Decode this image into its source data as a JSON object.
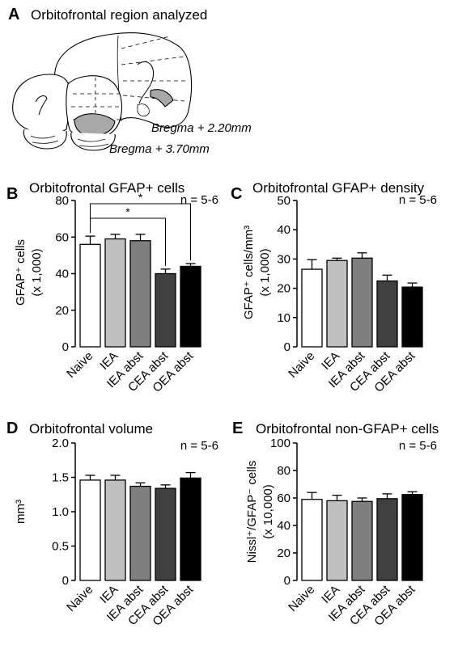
{
  "panelA": {
    "letter": "A",
    "title": "Orbitofrontal region analyzed",
    "bregma_labels": [
      "Bregma + 2.20mm",
      "Bregma + 3.70mm"
    ]
  },
  "colors": {
    "Naive": "#ffffff",
    "IEA": "#c0c0c0",
    "IEA abst": "#7f7f7f",
    "CEA abst": "#404040",
    "OEA abst": "#000000",
    "shading": "#a8a8a8"
  },
  "chart_data": [
    {
      "id": "B",
      "letter": "B",
      "type": "bar",
      "title": "Orbitofrontal GFAP+ cells",
      "n_label": "n = 5-6",
      "ylabel_lines": [
        "GFAP⁺ cells",
        "(x 1,000)"
      ],
      "ylim": [
        0,
        80
      ],
      "yticks": [
        0,
        20,
        40,
        60,
        80
      ],
      "categories": [
        "Naive",
        "IEA",
        "IEA abst",
        "CEA abst",
        "OEA abst"
      ],
      "values": [
        56,
        59,
        58,
        40,
        44
      ],
      "errors": [
        4.5,
        2.5,
        3.5,
        2.5,
        1.5
      ],
      "significance": [
        {
          "from": "Naive",
          "to": "CEA abst",
          "label": "*"
        },
        {
          "from": "Naive",
          "to": "OEA abst",
          "label": "*"
        }
      ]
    },
    {
      "id": "C",
      "letter": "C",
      "type": "bar",
      "title": "Orbitofrontal GFAP+ density",
      "n_label": "n = 5-6",
      "ylabel_lines": [
        "GFAP⁺ cells/mm³",
        "(x 1,000)"
      ],
      "ylim": [
        0,
        50
      ],
      "yticks": [
        0,
        10,
        20,
        30,
        40,
        50
      ],
      "categories": [
        "Naive",
        "IEA",
        "IEA abst",
        "CEA abst",
        "OEA abst"
      ],
      "values": [
        26.5,
        29.5,
        30.3,
        22.5,
        20.4
      ],
      "errors": [
        3.3,
        0.8,
        1.8,
        2.0,
        1.4
      ],
      "significance": []
    },
    {
      "id": "D",
      "letter": "D",
      "type": "bar",
      "title": "Orbitofrontal volume",
      "n_label": "n = 5-6",
      "ylabel_lines": [
        "mm³"
      ],
      "ylim": [
        0,
        2.0
      ],
      "yticks": [
        "0",
        "0.5",
        "1.0",
        "1.5",
        "2.0"
      ],
      "categories": [
        "Naive",
        "IEA",
        "IEA abst",
        "CEA abst",
        "OEA abst"
      ],
      "values": [
        1.46,
        1.46,
        1.37,
        1.34,
        1.49
      ],
      "errors": [
        0.07,
        0.07,
        0.05,
        0.05,
        0.08
      ],
      "significance": []
    },
    {
      "id": "E",
      "letter": "E",
      "type": "bar",
      "title": "Orbitofrontal non-GFAP+ cells",
      "n_label": "n = 5-6",
      "ylabel_lines": [
        "Nissl⁺/GFAP⁻ cells",
        "(x 10,000)"
      ],
      "ylim": [
        0,
        100
      ],
      "yticks": [
        0,
        20,
        40,
        60,
        80,
        100
      ],
      "categories": [
        "Naive",
        "IEA",
        "IEA abst",
        "CEA abst",
        "OEA abst"
      ],
      "values": [
        59,
        58,
        57.5,
        59.5,
        62.5
      ],
      "errors": [
        5,
        4,
        2.5,
        3.5,
        2
      ],
      "significance": []
    }
  ]
}
